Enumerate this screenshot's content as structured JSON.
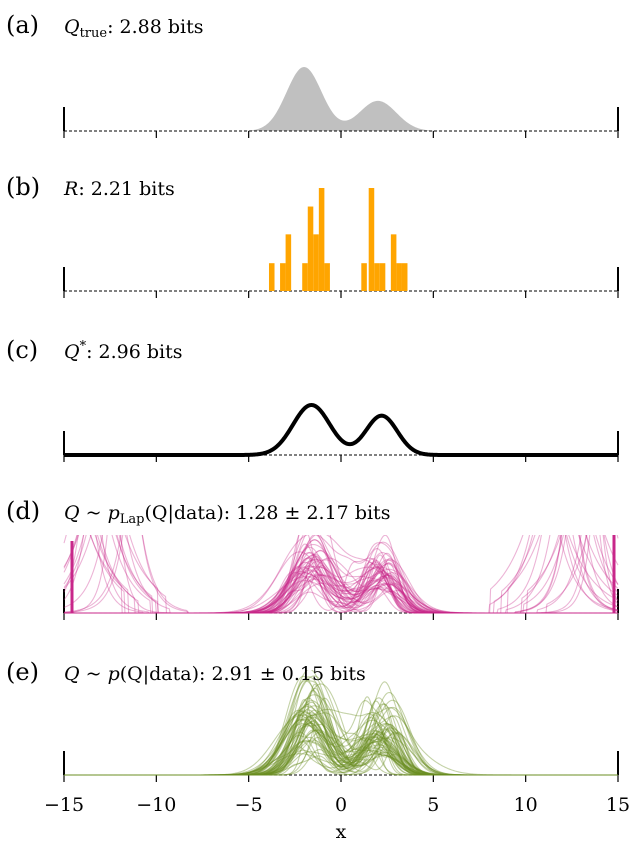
{
  "chart_data": {
    "type": "area",
    "x_range": [
      -15,
      15
    ],
    "xlabel": "x",
    "xticks": [
      -15,
      -10,
      -5,
      0,
      5,
      10,
      15
    ],
    "xtick_labels": [
      "−15",
      "−10",
      "−5",
      "0",
      "5",
      "10",
      "15"
    ],
    "grid": false,
    "panels": [
      {
        "id": "a",
        "label": "(a)",
        "title_sym": "Q",
        "title_sub": "true",
        "title_rest": ": 2.88 bits",
        "kind": "filled-density",
        "color": "#c0c0c0",
        "components": [
          {
            "weight": 0.68,
            "mean": -2.0,
            "sd": 0.95
          },
          {
            "weight": 0.32,
            "mean": 2.0,
            "sd": 1.0
          }
        ]
      },
      {
        "id": "b",
        "label": "(b)",
        "title_sym": "R",
        "title_rest": ": 2.21 bits",
        "kind": "histogram",
        "color": "#ffa500",
        "bin_width": 0.3,
        "bins": [
          {
            "x": -3.9,
            "h": 0.27
          },
          {
            "x": -3.3,
            "h": 0.27
          },
          {
            "x": -3.0,
            "h": 0.55
          },
          {
            "x": -2.1,
            "h": 0.27
          },
          {
            "x": -1.8,
            "h": 0.82
          },
          {
            "x": -1.5,
            "h": 0.55
          },
          {
            "x": -1.2,
            "h": 1.0
          },
          {
            "x": -0.9,
            "h": 0.27
          },
          {
            "x": 1.1,
            "h": 0.27
          },
          {
            "x": 1.5,
            "h": 1.0
          },
          {
            "x": 1.8,
            "h": 0.27
          },
          {
            "x": 2.1,
            "h": 0.27
          },
          {
            "x": 2.7,
            "h": 0.55
          },
          {
            "x": 3.0,
            "h": 0.27
          },
          {
            "x": 3.3,
            "h": 0.27
          }
        ]
      },
      {
        "id": "c",
        "label": "(c)",
        "title_sym": "Q",
        "title_sup": "*",
        "title_rest": ": 2.96 bits",
        "kind": "line-density",
        "color": "#000000",
        "components": [
          {
            "weight": 0.56,
            "mean": -1.6,
            "sd": 1.0
          },
          {
            "weight": 0.44,
            "mean": 2.2,
            "sd": 0.85
          }
        ]
      },
      {
        "id": "d",
        "label": "(d)",
        "title_pre": "Q ~ p",
        "title_sub": "Lap",
        "title_rest": "(Q|data): 1.28 ± 2.17 bits",
        "kind": "posterior-samples",
        "color": "#c8278a",
        "n_samples": 50,
        "edge_spikes": true,
        "components": [
          {
            "weight": 0.56,
            "mean": -1.6,
            "sd": 1.0
          },
          {
            "weight": 0.44,
            "mean": 2.2,
            "sd": 0.85
          }
        ]
      },
      {
        "id": "e",
        "label": "(e)",
        "title_pre": "Q ~ p",
        "title_rest": "(Q|data): 2.91 ± 0.15 bits",
        "kind": "posterior-samples",
        "color": "#6b8e23",
        "n_samples": 60,
        "edge_spikes": false,
        "components": [
          {
            "weight": 0.56,
            "mean": -1.6,
            "sd": 1.0
          },
          {
            "weight": 0.44,
            "mean": 2.2,
            "sd": 0.85
          }
        ]
      }
    ]
  }
}
